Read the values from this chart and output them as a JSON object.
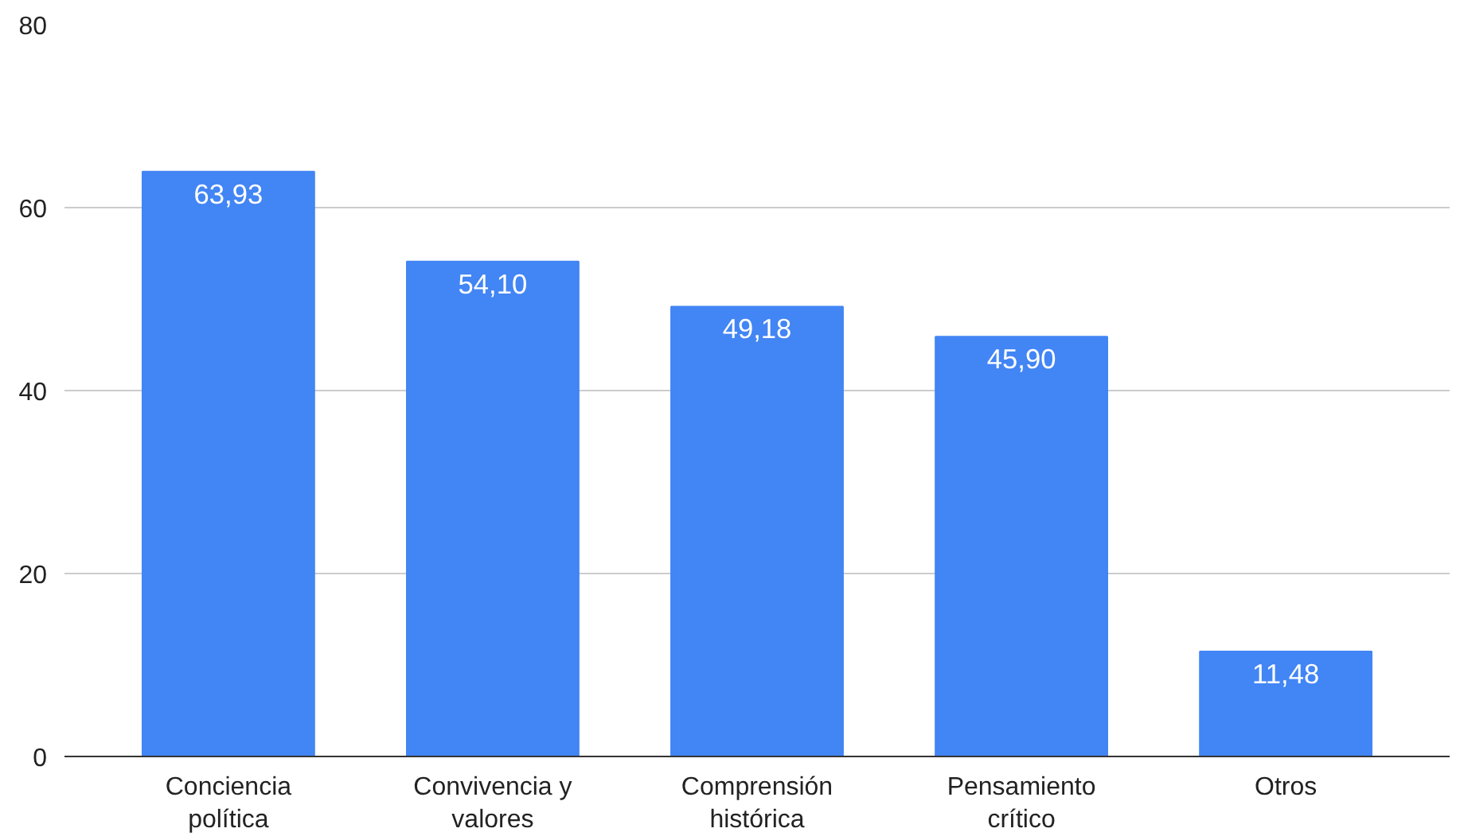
{
  "chart_data": {
    "type": "bar",
    "categories": [
      "Conciencia política",
      "Convivencia y valores",
      "Comprensión histórica",
      "Pensamiento crítico",
      "Otros"
    ],
    "values": [
      63.93,
      54.1,
      49.18,
      45.9,
      11.48
    ],
    "value_labels": [
      "63,93",
      "54,10",
      "49,18",
      "45,90",
      "11,48"
    ],
    "color": "#4285f4",
    "ylim": [
      0,
      80
    ],
    "yticks": [
      0,
      20,
      40,
      60,
      80
    ],
    "grid": "y"
  }
}
